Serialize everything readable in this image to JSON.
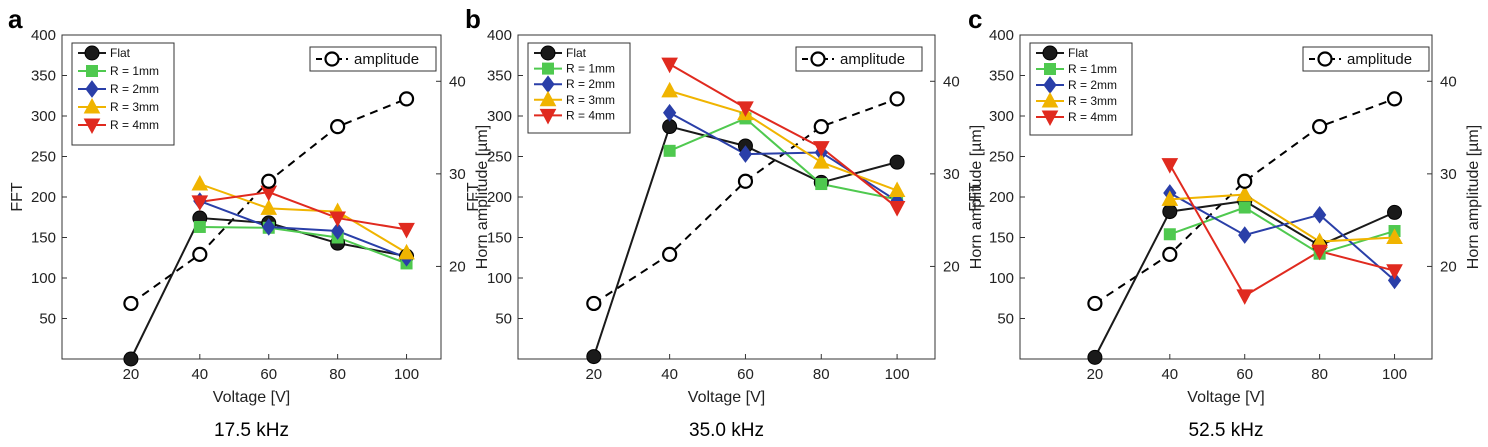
{
  "legend_amplitude_label": "amplitude",
  "colors": {
    "Flat": "#1a1a1a",
    "R = 1mm": "#4fc94f",
    "R = 2mm": "#2a3fa8",
    "R = 3mm": "#f0b400",
    "R = 4mm": "#e02a1f",
    "amplitude": "#000000"
  },
  "markers": {
    "Flat": "circle",
    "R = 1mm": "square",
    "R = 2mm": "diamond",
    "R = 3mm": "triangle-up",
    "R = 4mm": "triangle-down",
    "amplitude": "open-circle"
  },
  "chart_data": [
    {
      "type": "line",
      "panel": "a",
      "caption": "17.5 kHz",
      "xlabel": "Voltage [V]",
      "ylabel": "FFT",
      "ylabel_right": "Horn amplitude [µm]",
      "x": [
        20,
        40,
        60,
        80,
        100
      ],
      "xlim": [
        0,
        110
      ],
      "ylim": [
        0,
        400
      ],
      "yticks": [
        50,
        100,
        150,
        200,
        250,
        300,
        350,
        400
      ],
      "xticks": [
        20,
        40,
        60,
        80,
        100
      ],
      "right_ylim": [
        10,
        45
      ],
      "right_yticks": [
        20,
        30,
        40
      ],
      "grid": false,
      "legend_placement": "top-left",
      "series": [
        {
          "name": "Flat",
          "x": [
            20,
            40,
            60,
            80,
            100
          ],
          "values": [
            0,
            174,
            168,
            143,
            127
          ]
        },
        {
          "name": "R = 1mm",
          "x": [
            40,
            60,
            80,
            100
          ],
          "values": [
            163,
            162,
            150,
            118
          ]
        },
        {
          "name": "R = 2mm",
          "x": [
            40,
            60,
            80,
            100
          ],
          "values": [
            195,
            163,
            158,
            125
          ]
        },
        {
          "name": "R = 3mm",
          "x": [
            40,
            60,
            80,
            100
          ],
          "values": [
            216,
            186,
            182,
            131
          ]
        },
        {
          "name": "R = 4mm",
          "x": [
            40,
            60,
            80,
            100
          ],
          "values": [
            194,
            206,
            174,
            160
          ]
        }
      ],
      "amplitude": {
        "name": "amplitude",
        "x": [
          20,
          40,
          60,
          80,
          100
        ],
        "values": [
          16,
          21.3,
          29.2,
          35.1,
          38.1
        ]
      }
    },
    {
      "type": "line",
      "panel": "b",
      "caption": "35.0 kHz",
      "xlabel": "Voltage [V]",
      "ylabel": "FFT",
      "ylabel_right": "Horn amplitude [µm]",
      "x": [
        20,
        40,
        60,
        80,
        100
      ],
      "xlim": [
        0,
        110
      ],
      "ylim": [
        0,
        400
      ],
      "yticks": [
        50,
        100,
        150,
        200,
        250,
        300,
        350,
        400
      ],
      "xticks": [
        20,
        40,
        60,
        80,
        100
      ],
      "right_ylim": [
        10,
        45
      ],
      "right_yticks": [
        20,
        30,
        40
      ],
      "grid": false,
      "legend_placement": "top-left",
      "series": [
        {
          "name": "Flat",
          "x": [
            20,
            40,
            60,
            80,
            100
          ],
          "values": [
            3,
            287,
            263,
            218,
            243
          ]
        },
        {
          "name": "R = 1mm",
          "x": [
            40,
            60,
            80,
            100
          ],
          "values": [
            257,
            297,
            216,
            197
          ]
        },
        {
          "name": "R = 2mm",
          "x": [
            40,
            60,
            80,
            100
          ],
          "values": [
            304,
            253,
            255,
            195
          ]
        },
        {
          "name": "R = 3mm",
          "x": [
            40,
            60,
            80,
            100
          ],
          "values": [
            331,
            303,
            243,
            208
          ]
        },
        {
          "name": "R = 4mm",
          "x": [
            40,
            60,
            80,
            100
          ],
          "values": [
            364,
            310,
            261,
            187
          ]
        }
      ],
      "amplitude": {
        "name": "amplitude",
        "x": [
          20,
          40,
          60,
          80,
          100
        ],
        "values": [
          16,
          21.3,
          29.2,
          35.1,
          38.1
        ]
      }
    },
    {
      "type": "line",
      "panel": "c",
      "caption": "52.5 kHz",
      "xlabel": "Voltage [V]",
      "ylabel": "FFT",
      "ylabel_right": "Horn amplitude [µm]",
      "x": [
        20,
        40,
        60,
        80,
        100
      ],
      "xlim": [
        0,
        110
      ],
      "ylim": [
        0,
        400
      ],
      "yticks": [
        50,
        100,
        150,
        200,
        250,
        300,
        350,
        400
      ],
      "xticks": [
        20,
        40,
        60,
        80,
        100
      ],
      "right_ylim": [
        10,
        45
      ],
      "right_yticks": [
        20,
        30,
        40
      ],
      "grid": false,
      "legend_placement": "top-left",
      "series": [
        {
          "name": "Flat",
          "x": [
            20,
            40,
            60,
            80,
            100
          ],
          "values": [
            2,
            182,
            195,
            140,
            181
          ]
        },
        {
          "name": "R = 1mm",
          "x": [
            40,
            60,
            80,
            100
          ],
          "values": [
            154,
            187,
            130,
            158
          ]
        },
        {
          "name": "R = 2mm",
          "x": [
            40,
            60,
            80,
            100
          ],
          "values": [
            205,
            153,
            178,
            97
          ]
        },
        {
          "name": "R = 3mm",
          "x": [
            40,
            60,
            80,
            100
          ],
          "values": [
            197,
            203,
            145,
            150
          ]
        },
        {
          "name": "R = 4mm",
          "x": [
            40,
            60,
            80,
            100
          ],
          "values": [
            240,
            78,
            133,
            109
          ]
        }
      ],
      "amplitude": {
        "name": "amplitude",
        "x": [
          20,
          40,
          60,
          80,
          100
        ],
        "values": [
          16,
          21.3,
          29.2,
          35.1,
          38.1
        ]
      }
    }
  ]
}
